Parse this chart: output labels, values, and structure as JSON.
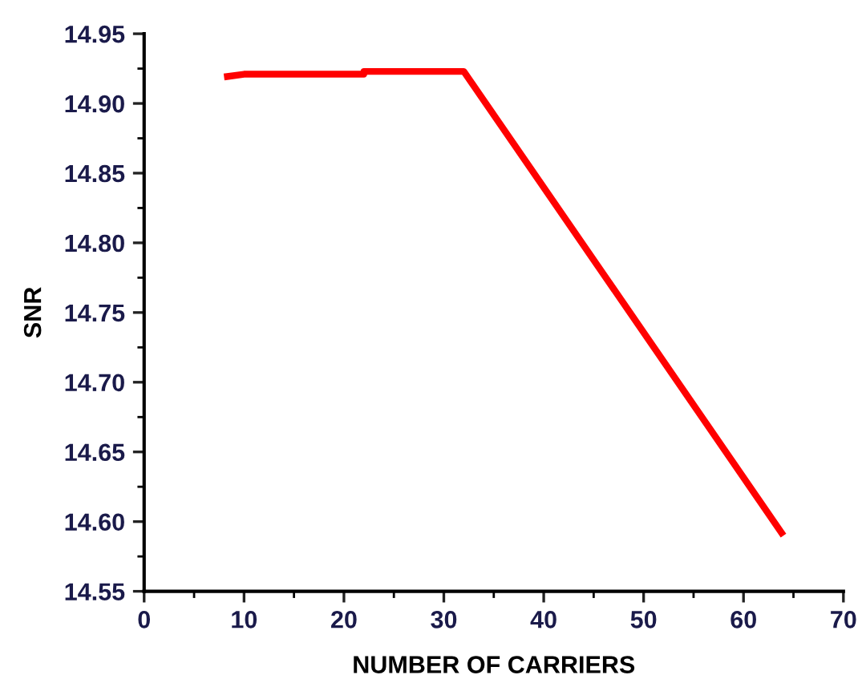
{
  "chart_data": {
    "type": "line",
    "xlabel": "NUMBER OF CARRIERS",
    "ylabel": "SNR",
    "x": [
      8,
      10,
      22,
      22,
      32,
      64
    ],
    "series": [
      {
        "color": "#ff0000",
        "values": [
          14.919,
          14.921,
          14.921,
          14.923,
          14.923,
          14.59
        ]
      }
    ],
    "xlim": [
      0,
      70
    ],
    "xticks": [
      0,
      10,
      20,
      30,
      40,
      50,
      60,
      70
    ],
    "ylim": [
      14.55,
      14.95
    ],
    "yticks": [
      {
        "value": 14.55,
        "label": "14.55"
      },
      {
        "value": 14.6,
        "label": "14.60"
      },
      {
        "value": 14.65,
        "label": "14.65"
      },
      {
        "value": 14.7,
        "label": "14.70"
      },
      {
        "value": 14.75,
        "label": "14.75"
      },
      {
        "value": 14.8,
        "label": "14.80"
      },
      {
        "value": 14.85,
        "label": "14.85"
      },
      {
        "value": 14.9,
        "label": "14.90"
      },
      {
        "value": 14.95,
        "label": "14.95"
      }
    ],
    "grid": false,
    "marker": "none",
    "line_style": "solid"
  }
}
